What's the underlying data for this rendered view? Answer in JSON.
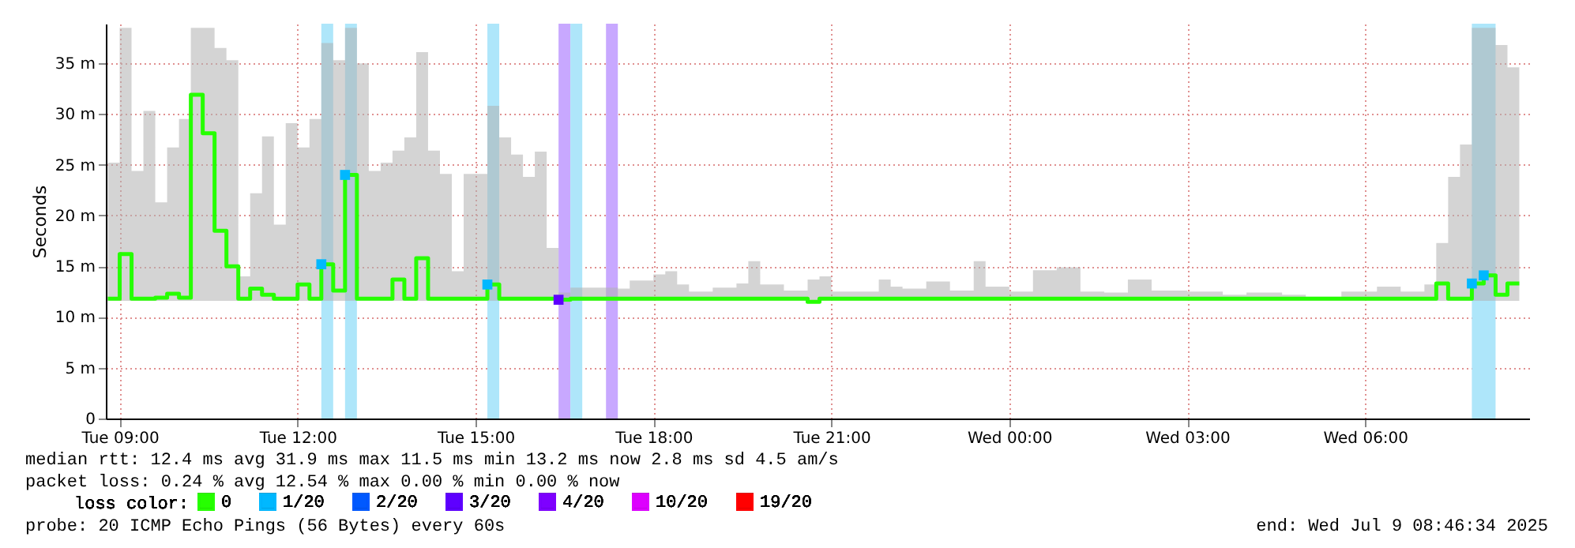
{
  "chart_data": {
    "type": "step",
    "ylabel": "Seconds",
    "legend_title": "loss color:",
    "legend": "bottom",
    "grid": true,
    "xlim": [
      "2025-07-08T08:46",
      "2025-07-09T08:46"
    ],
    "xticks": [
      {
        "value": "2025-07-08T09:00",
        "label": "Tue 09:00"
      },
      {
        "value": "2025-07-08T12:00",
        "label": "Tue 12:00"
      },
      {
        "value": "2025-07-08T15:00",
        "label": "Tue 15:00"
      },
      {
        "value": "2025-07-08T18:00",
        "label": "Tue 18:00"
      },
      {
        "value": "2025-07-08T21:00",
        "label": "Tue 21:00"
      },
      {
        "value": "2025-07-09T00:00",
        "label": "Wed 00:00"
      },
      {
        "value": "2025-07-09T03:00",
        "label": "Wed 03:00"
      },
      {
        "value": "2025-07-09T06:00",
        "label": "Wed 06:00"
      }
    ],
    "ylim": [
      0,
      38.9
    ],
    "yticks": [
      0,
      {
        "value": 5,
        "label": "5 m"
      },
      {
        "value": 10,
        "label": "10 m"
      },
      {
        "value": 15,
        "label": "15 m"
      },
      {
        "value": 20,
        "label": "20 m"
      },
      {
        "value": 25,
        "label": "25 m"
      },
      {
        "value": 30,
        "label": "30 m"
      },
      {
        "value": 35,
        "label": "35 m"
      }
    ],
    "bands": [
      {
        "axis": "x",
        "from": "2025-07-08T12:24",
        "to": "2025-07-08T12:36",
        "color": "#aee6fa"
      },
      {
        "axis": "x",
        "from": "2025-07-08T12:48",
        "to": "2025-07-08T13:00",
        "color": "#aee6fa"
      },
      {
        "axis": "x",
        "from": "2025-07-08T15:12",
        "to": "2025-07-08T15:24",
        "color": "#aee6fa"
      },
      {
        "axis": "x",
        "from": "2025-07-08T16:24",
        "to": "2025-07-08T16:36",
        "color": "#c8a8ff"
      },
      {
        "axis": "x",
        "from": "2025-07-08T16:36",
        "to": "2025-07-08T16:48",
        "color": "#aee6fa"
      },
      {
        "axis": "x",
        "from": "2025-07-08T17:12",
        "to": "2025-07-08T17:24",
        "color": "#c8a8ff"
      },
      {
        "axis": "x",
        "from": "2025-07-09T07:48",
        "to": "2025-07-09T08:12",
        "color": "#aee6fa"
      }
    ],
    "series": [
      {
        "name": "0",
        "color": "#26ff00",
        "x": [
          "2025-07-08T08:48",
          "2025-07-08T09:00",
          "2025-07-08T09:12",
          "2025-07-08T09:24",
          "2025-07-08T09:36",
          "2025-07-08T09:48",
          "2025-07-08T10:00",
          "2025-07-08T10:12",
          "2025-07-08T10:24",
          "2025-07-08T10:36",
          "2025-07-08T10:48",
          "2025-07-08T11:00",
          "2025-07-08T11:12",
          "2025-07-08T11:24",
          "2025-07-08T11:36",
          "2025-07-08T11:48",
          "2025-07-08T12:00",
          "2025-07-08T12:12",
          "2025-07-08T12:24",
          "2025-07-08T12:36",
          "2025-07-08T12:48",
          "2025-07-08T13:00",
          "2025-07-08T13:12",
          "2025-07-08T13:24",
          "2025-07-08T13:36",
          "2025-07-08T13:48",
          "2025-07-08T14:00",
          "2025-07-08T14:12",
          "2025-07-08T14:24",
          "2025-07-08T14:36",
          "2025-07-08T14:48",
          "2025-07-08T15:00",
          "2025-07-08T15:12",
          "2025-07-08T15:24",
          "2025-07-08T15:36",
          "2025-07-08T15:48",
          "2025-07-08T16:00",
          "2025-07-08T16:12",
          "2025-07-08T16:24",
          "2025-07-08T16:36",
          "2025-07-08T17:00",
          "2025-07-08T17:24",
          "2025-07-08T17:36",
          "2025-07-08T18:00",
          "2025-07-08T18:12",
          "2025-07-08T18:24",
          "2025-07-08T18:36",
          "2025-07-08T19:00",
          "2025-07-08T19:24",
          "2025-07-08T19:36",
          "2025-07-08T19:48",
          "2025-07-08T20:12",
          "2025-07-08T20:36",
          "2025-07-08T20:48",
          "2025-07-08T21:00",
          "2025-07-08T21:24",
          "2025-07-08T21:48",
          "2025-07-08T22:00",
          "2025-07-08T22:12",
          "2025-07-08T22:36",
          "2025-07-08T23:00",
          "2025-07-08T23:24",
          "2025-07-08T23:36",
          "2025-07-09T00:00",
          "2025-07-09T00:24",
          "2025-07-09T00:48",
          "2025-07-09T01:12",
          "2025-07-09T01:36",
          "2025-07-09T02:00",
          "2025-07-09T02:24",
          "2025-07-09T03:00",
          "2025-07-09T03:36",
          "2025-07-09T04:00",
          "2025-07-09T04:36",
          "2025-07-09T05:00",
          "2025-07-09T05:36",
          "2025-07-09T06:12",
          "2025-07-09T06:36",
          "2025-07-09T07:00",
          "2025-07-09T07:12",
          "2025-07-09T07:24",
          "2025-07-09T07:36",
          "2025-07-09T07:48",
          "2025-07-09T08:00",
          "2025-07-09T08:12",
          "2025-07-09T08:24",
          "2025-07-09T08:36"
        ],
        "values": [
          11.8,
          16.2,
          11.8,
          11.8,
          11.9,
          12.3,
          11.9,
          31.9,
          28.1,
          18.5,
          15.0,
          11.8,
          12.8,
          12.2,
          11.8,
          11.8,
          13.2,
          11.8,
          15.2,
          12.6,
          24.0,
          11.8,
          11.8,
          11.8,
          13.7,
          11.8,
          15.8,
          11.8,
          11.8,
          11.8,
          11.8,
          11.8,
          13.2,
          11.8,
          11.8,
          11.8,
          11.8,
          11.8,
          11.7,
          11.8,
          11.8,
          11.8,
          11.8,
          11.8,
          11.8,
          11.8,
          11.8,
          11.8,
          11.8,
          11.8,
          11.8,
          11.8,
          11.5,
          11.8,
          11.8,
          11.8,
          11.8,
          11.8,
          11.8,
          11.8,
          11.8,
          11.8,
          11.8,
          11.8,
          11.8,
          11.8,
          11.8,
          11.8,
          11.8,
          11.8,
          11.8,
          11.8,
          11.8,
          11.8,
          11.8,
          11.8,
          11.8,
          11.8,
          11.8,
          13.3,
          11.8,
          11.8,
          13.3,
          14.1,
          12.2,
          13.3,
          13.3
        ],
        "lower": [
          11.6,
          11.6,
          11.6,
          11.6,
          11.6,
          11.6,
          11.6,
          11.6,
          11.6,
          11.6,
          11.6,
          11.6,
          11.6,
          11.6,
          11.6,
          11.6,
          11.6,
          11.6,
          11.6,
          11.6,
          11.6,
          11.6,
          11.6,
          11.6,
          11.6,
          11.6,
          11.6,
          11.6,
          11.6,
          11.6,
          11.6,
          11.6,
          11.6,
          11.6,
          11.6,
          11.6,
          11.6,
          11.6,
          11.6,
          11.6,
          11.6,
          11.6,
          11.6,
          11.6,
          11.6,
          11.6,
          11.6,
          11.6,
          11.6,
          11.6,
          11.6,
          11.6,
          11.4,
          11.6,
          11.6,
          11.6,
          11.6,
          11.6,
          11.6,
          11.6,
          11.6,
          11.6,
          11.6,
          11.6,
          11.6,
          11.6,
          11.6,
          11.6,
          11.6,
          11.6,
          11.6,
          11.6,
          11.6,
          11.6,
          11.6,
          11.6,
          11.6,
          11.6,
          11.6,
          11.6,
          11.6,
          11.6,
          11.6,
          11.6,
          11.6,
          11.6,
          11.6
        ],
        "upper": [
          25.2,
          38.5,
          24.4,
          30.3,
          21.3,
          26.7,
          29.5,
          38.5,
          38.5,
          36.5,
          35.3,
          14.0,
          22.2,
          27.8,
          19.1,
          29.1,
          26.7,
          29.5,
          37.0,
          35.3,
          38.5,
          35.0,
          24.4,
          25.2,
          26.4,
          27.7,
          36.1,
          26.4,
          24.1,
          14.5,
          24.1,
          24.1,
          30.8,
          27.7,
          26.0,
          23.8,
          26.3,
          16.8,
          12.4,
          12.9,
          12.9,
          12.8,
          13.6,
          14.2,
          14.5,
          13.2,
          12.5,
          12.9,
          13.3,
          15.5,
          13.2,
          12.6,
          13.7,
          14.0,
          12.5,
          12.5,
          13.7,
          13.0,
          12.8,
          13.5,
          12.6,
          15.5,
          13.0,
          12.5,
          14.6,
          14.9,
          12.5,
          12.4,
          13.7,
          12.6,
          12.5,
          12.2,
          12.4,
          12.2,
          12.0,
          12.5,
          13.0,
          12.5,
          13.2,
          17.3,
          23.8,
          27.0,
          38.5,
          38.5,
          36.8,
          34.6,
          34.6
        ]
      },
      {
        "name": "1/20",
        "type": "scatter",
        "marker": "square",
        "color": "#00b8ff",
        "x": [
          "2025-07-08T12:24",
          "2025-07-08T12:48",
          "2025-07-08T15:12",
          "2025-07-09T07:48",
          "2025-07-09T08:00"
        ],
        "values": [
          15.2,
          24.0,
          13.2,
          13.3,
          14.1
        ]
      },
      {
        "name": "2/20",
        "color": "#0059ff"
      },
      {
        "name": "3/20",
        "type": "scatter",
        "marker": "square",
        "color": "#5e00ff",
        "x": [
          "2025-07-08T16:24"
        ],
        "values": [
          11.7
        ]
      },
      {
        "name": "4/20",
        "color": "#7e00ff"
      },
      {
        "name": "10/20",
        "color": "#dd00ff"
      },
      {
        "name": "19/20",
        "color": "#ff0000"
      }
    ],
    "annotations": [
      "median rtt:  12.4 ms avg  31.9 ms max  11.5 ms min  13.2 ms now  2.8 ms sd  4.5   am/s",
      "packet loss: 0.24 % avg  12.54 % max  0.00 % min  0.00 % now",
      "probe:       20 ICMP Echo Pings (56 Bytes) every 60s",
      "end: Wed Jul  9 08:46:34 2025"
    ]
  }
}
